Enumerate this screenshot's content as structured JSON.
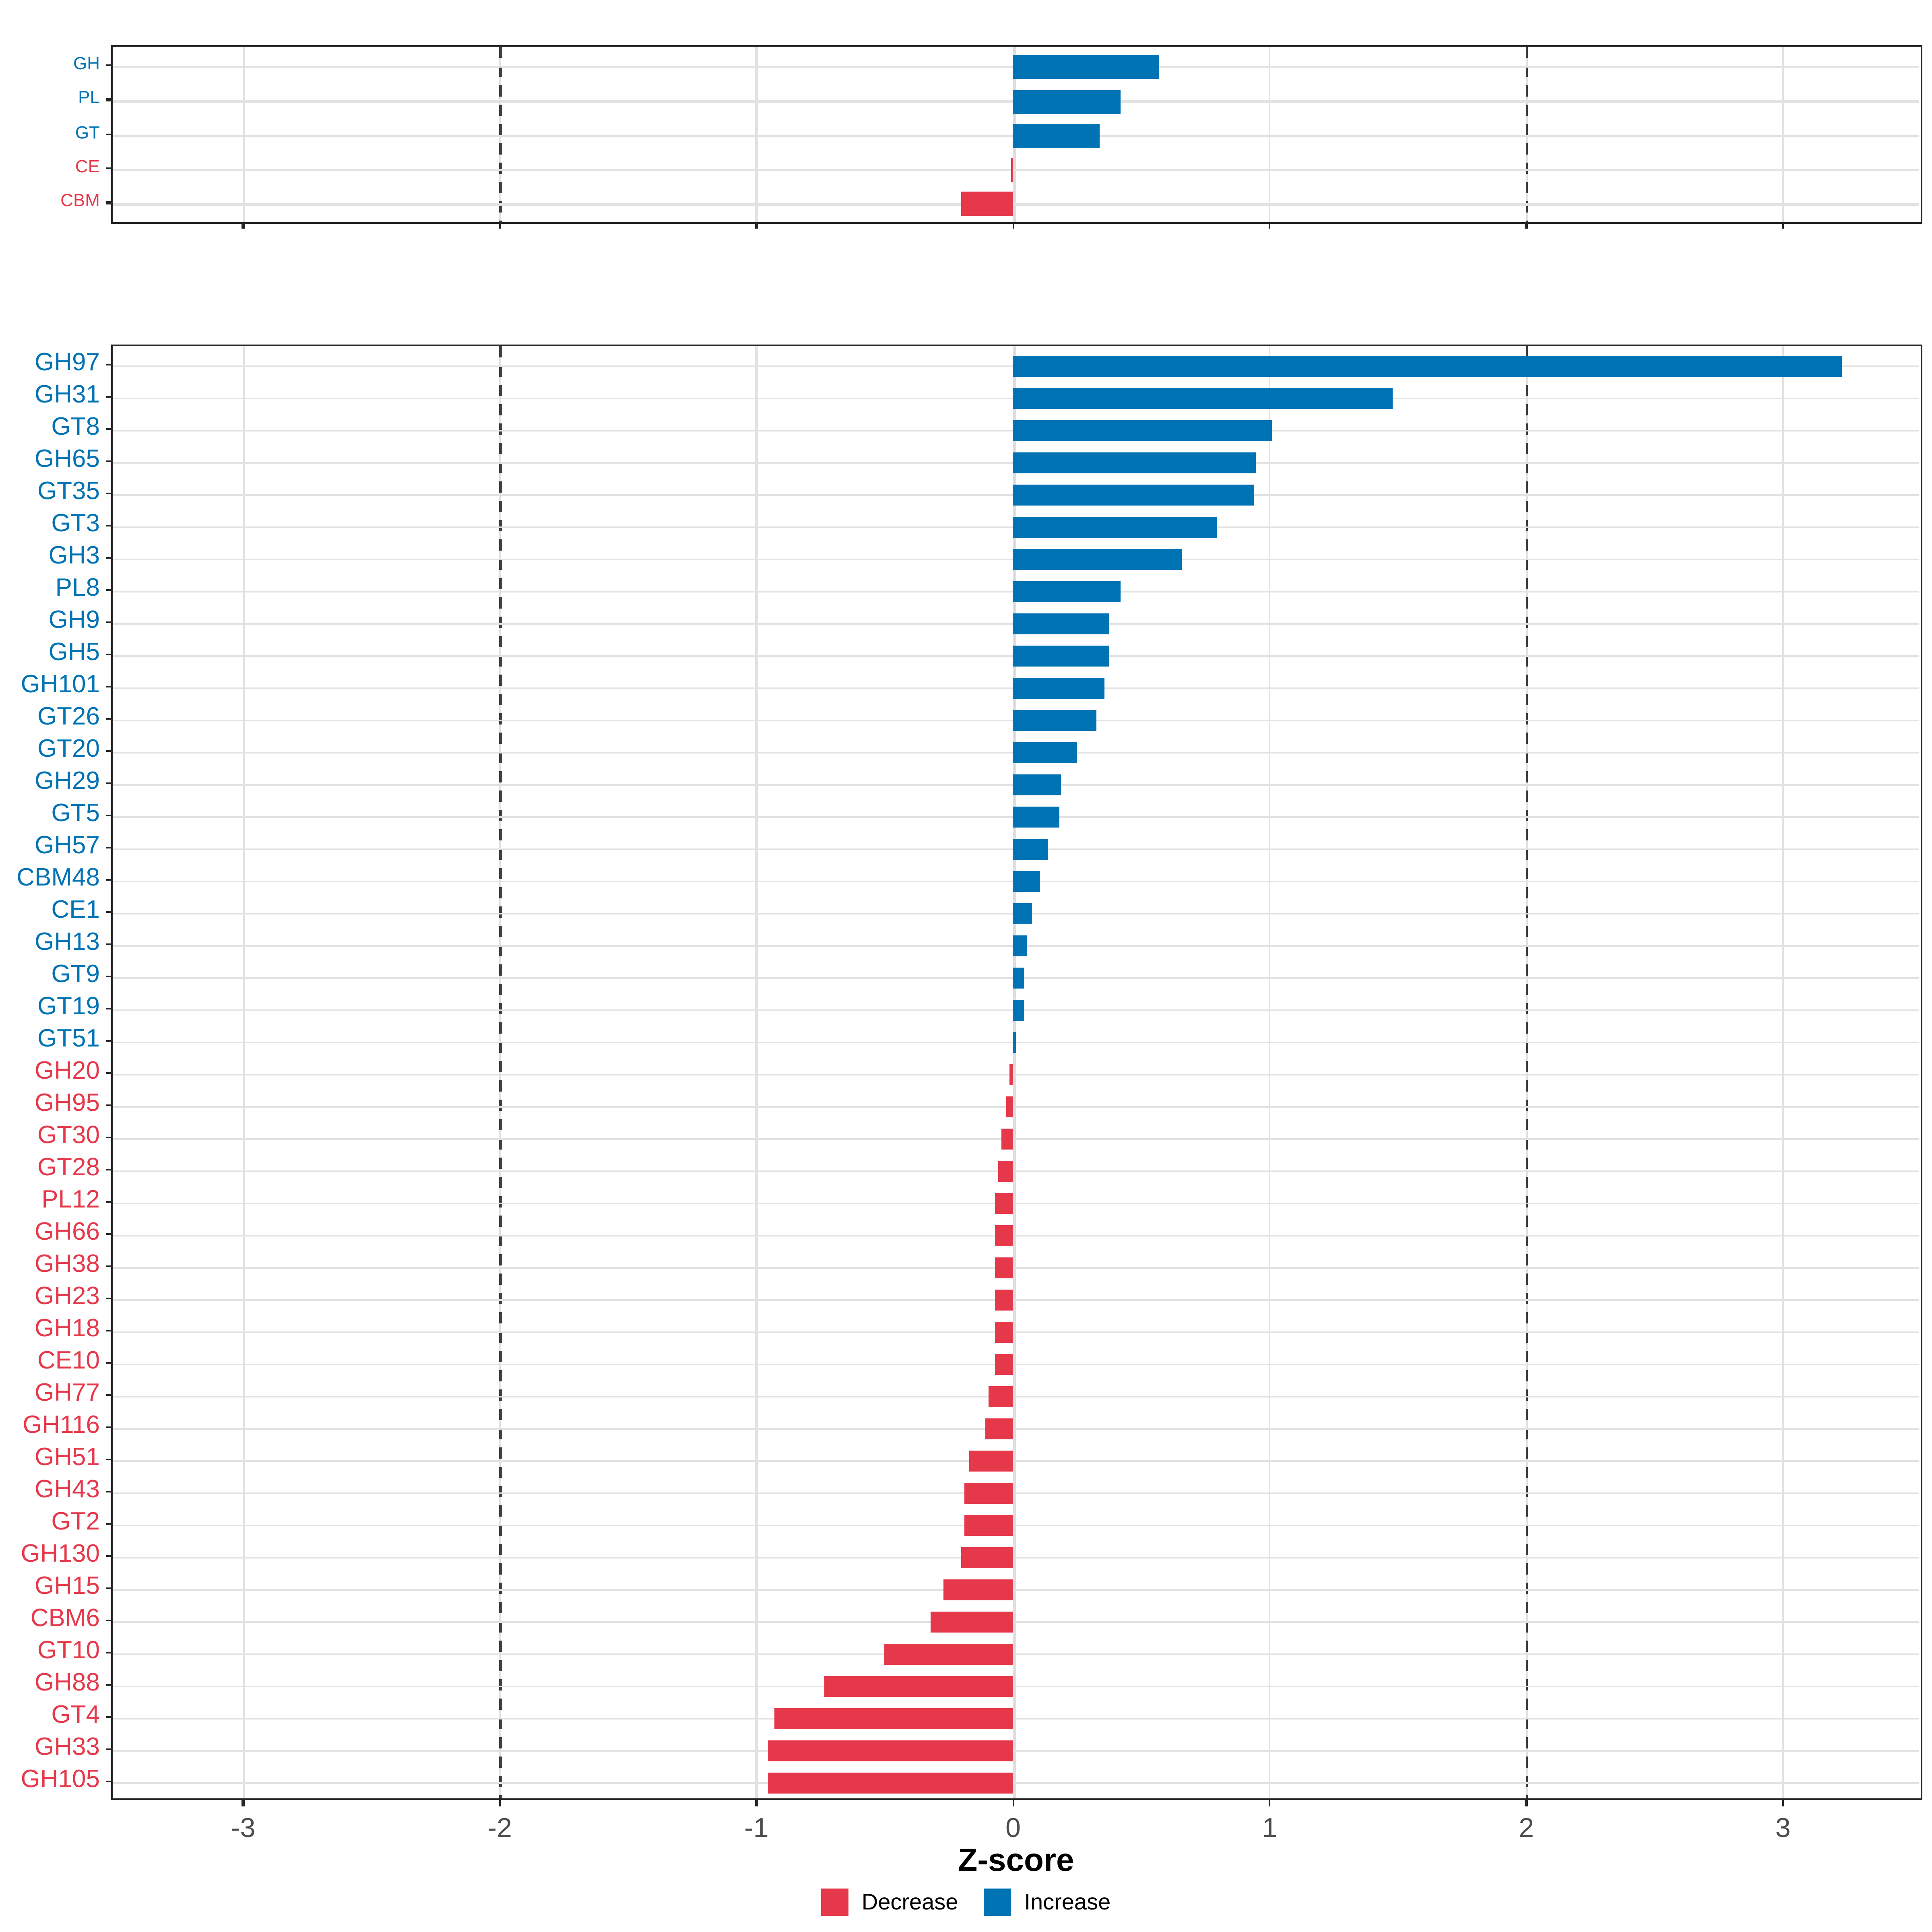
{
  "figure": {
    "axis": {
      "label": "Z-score",
      "tick_values": [
        -3,
        -2,
        -1,
        0,
        1,
        2,
        3
      ],
      "tick_labels": [
        "-3",
        "-2",
        "-1",
        "0",
        "1",
        "2",
        "3"
      ],
      "xlim": [
        -3.52,
        3.55
      ],
      "reference_lines": [
        -2,
        2
      ]
    },
    "legend": {
      "items": [
        {
          "label": "Decrease",
          "color": "#e6384b"
        },
        {
          "label": "Increase",
          "color": "#0073b5"
        }
      ]
    },
    "colors": {
      "increase": "#0073b5",
      "decrease": "#e6384b",
      "grid": "#e2e2e2",
      "reference_dash": "#3f3f3f",
      "tick_text": "#4d4d4d",
      "panel_border": "#262626"
    }
  },
  "chart_data": [
    {
      "type": "bar",
      "orientation": "horizontal",
      "panel": "top",
      "title": "",
      "xlabel": "Z-score",
      "ylabel": "",
      "xlim": [
        -3.52,
        3.55
      ],
      "grid": true,
      "legend_position": "bottom",
      "categories": [
        "GH",
        "PL",
        "GT",
        "CE",
        "CBM"
      ],
      "values": [
        0.57,
        0.42,
        0.34,
        -0.005,
        -0.2
      ],
      "directions": [
        "Increase",
        "Increase",
        "Increase",
        "Decrease",
        "Decrease"
      ]
    },
    {
      "type": "bar",
      "orientation": "horizontal",
      "panel": "bottom",
      "title": "",
      "xlabel": "Z-score",
      "ylabel": "",
      "xlim": [
        -3.52,
        3.55
      ],
      "grid": true,
      "legend_position": "bottom",
      "categories": [
        "GH97",
        "GH31",
        "GT8",
        "GH65",
        "GT35",
        "GT3",
        "GH3",
        "PL8",
        "GH9",
        "GH5",
        "GH101",
        "GT26",
        "GT20",
        "GH29",
        "GT5",
        "GH57",
        "CBM48",
        "CE1",
        "GH13",
        "GT9",
        "GT19",
        "GT51",
        "GH20",
        "GH95",
        "GT30",
        "GT28",
        "PL12",
        "GH66",
        "GH38",
        "GH23",
        "GH18",
        "CE10",
        "GH77",
        "GH116",
        "GH51",
        "GH43",
        "GT2",
        "GH130",
        "GH15",
        "CBM6",
        "GT10",
        "GH88",
        "GT4",
        "GH33",
        "GH105"
      ],
      "values": [
        3.23,
        1.48,
        1.01,
        0.95,
        0.94,
        0.8,
        0.66,
        0.42,
        0.38,
        0.38,
        0.36,
        0.33,
        0.25,
        0.19,
        0.18,
        0.14,
        0.105,
        0.075,
        0.055,
        0.045,
        0.042,
        0.013,
        -0.011,
        -0.022,
        -0.043,
        -0.057,
        -0.068,
        -0.068,
        -0.068,
        -0.068,
        -0.068,
        -0.068,
        -0.095,
        -0.105,
        -0.17,
        -0.19,
        -0.19,
        -0.2,
        -0.27,
        -0.32,
        -0.5,
        -0.73,
        -0.93,
        -0.955,
        -0.955
      ],
      "directions": [
        "Increase",
        "Increase",
        "Increase",
        "Increase",
        "Increase",
        "Increase",
        "Increase",
        "Increase",
        "Increase",
        "Increase",
        "Increase",
        "Increase",
        "Increase",
        "Increase",
        "Increase",
        "Increase",
        "Increase",
        "Increase",
        "Increase",
        "Increase",
        "Increase",
        "Increase",
        "Decrease",
        "Decrease",
        "Decrease",
        "Decrease",
        "Decrease",
        "Decrease",
        "Decrease",
        "Decrease",
        "Decrease",
        "Decrease",
        "Decrease",
        "Decrease",
        "Decrease",
        "Decrease",
        "Decrease",
        "Decrease",
        "Decrease",
        "Decrease",
        "Decrease",
        "Decrease",
        "Decrease",
        "Decrease",
        "Decrease"
      ]
    }
  ]
}
